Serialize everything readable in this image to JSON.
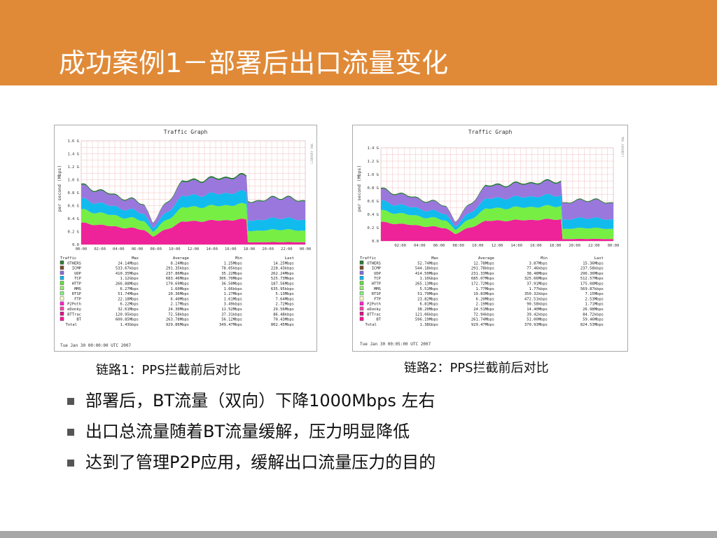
{
  "title": "成功案例1－部署后出口流量变化",
  "graphs": [
    {
      "graph_title": "Traffic Graph",
      "y_label": "per second (Mbps)",
      "side_text": "LIBRARY OWL",
      "y_ticks": [
        "1.6 G",
        "1.4 G",
        "1.2 G",
        "1.0 G",
        "0.8 G",
        "0.6 G",
        "0.4 G",
        "0.2 G",
        "0.0"
      ],
      "x_ticks": [
        "00:00",
        "02:00",
        "04:00",
        "06:00",
        "08:00",
        "10:00",
        "12:00",
        "14:00",
        "16:00",
        "18:00",
        "20:00",
        "22:00",
        "00:00"
      ],
      "headers": [
        "Traffic",
        "Max",
        "Average",
        "Min",
        "Last"
      ],
      "rows": [
        {
          "color": "#2e7d32",
          "name": "OTHERS",
          "max": "24.14Mbps",
          "avg": "8.24Mbps",
          "min": "1.25Mbps",
          "last": "14.25Mbps"
        },
        {
          "color": "#7b4a2a",
          "name": "ICMP",
          "max": "533.67kbps",
          "avg": "291.35kbps",
          "min": "78.05kbps",
          "last": "228.43kbps"
        },
        {
          "color": "#8a6fd6",
          "name": "UDP",
          "max": "410.35Mbps",
          "avg": "237.86Mbps",
          "min": "35.22Mbps",
          "last": "262.24Mbps"
        },
        {
          "color": "#12b6f0",
          "name": "TCP",
          "max": "1.12Gbps",
          "avg": "683.46Mbps",
          "min": "306.70Mbps",
          "last": "525.73Mbps"
        },
        {
          "color": "#66dd44",
          "name": "HTTP",
          "max": "266.88Mbps",
          "avg": "170.69Mbps",
          "min": "36.50Mbps",
          "last": "187.56Mbps"
        },
        {
          "color": "#a0e878",
          "name": "MMS",
          "max": "6.27Mbps",
          "avg": "1.60Mbps",
          "min": "1.66kbps",
          "last": "635.95kbps"
        },
        {
          "color": "#88ee88",
          "name": "RTSP",
          "max": "51.74Mbps",
          "avg": "20.36Mbps",
          "min": "1.27Mbps",
          "last": "5.13Mbps"
        },
        {
          "color": "#ffffcc",
          "name": "FTP",
          "max": "22.18Mbps",
          "avg": "6.40Mbps",
          "min": "1.61Mbps",
          "last": "7.64Mbps"
        },
        {
          "color": "#ff22cc",
          "name": "P2Poth",
          "max": "6.22Mbps",
          "avg": "2.17Mbps",
          "min": "3.49kbps",
          "last": "2.72Mbps"
        },
        {
          "color": "#ff44aa",
          "name": "eDonky",
          "max": "32.61Mbps",
          "avg": "24.30Mbps",
          "min": "11.52Mbps",
          "last": "29.56Mbps"
        },
        {
          "color": "#dd1188",
          "name": "BTTrac",
          "max": "120.95kbps",
          "avg": "72.58kbps",
          "min": "37.31kbps",
          "last": "86.48kbps"
        },
        {
          "color": "#ff1199",
          "name": "BT",
          "max": "600.85Mbps",
          "avg": "263.78Mbps",
          "min": "56.12Mbps",
          "last": "70.43Mbps"
        },
        {
          "color": "",
          "name": "Total",
          "max": "1.43Gbps",
          "avg": "929.86Mbps",
          "min": "349.47Mbps",
          "last": "802.45Mbps"
        }
      ],
      "timestamp": "Tue Jan 30 00:00:00 UTC 2007",
      "caption": "链路1：PPS拦截前后对比"
    },
    {
      "graph_title": "Traffic Graph",
      "y_label": "per second (Mbps)",
      "side_text": "LIBRARY OWL",
      "y_ticks": [
        "1.4 G",
        "1.2 G",
        "1.0 G",
        "0.8 G",
        "0.6 G",
        "0.4 G",
        "0.2 G",
        "0.0"
      ],
      "x_ticks": [
        "02:00",
        "04:00",
        "06:00",
        "08:00",
        "10:00",
        "12:00",
        "14:00",
        "16:00",
        "18:00",
        "20:00",
        "22:00",
        "00:00"
      ],
      "headers": [
        "Traffic",
        "Max",
        "Average",
        "Min",
        "Last"
      ],
      "rows": [
        {
          "color": "#2e7d32",
          "name": "OTHERS",
          "max": "52.74Mbps",
          "avg": "12.78Mbps",
          "min": "3.87Mbps",
          "last": "15.36Mbps"
        },
        {
          "color": "#7b4a2a",
          "name": "ICMP",
          "max": "544.18kbps",
          "avg": "291.78kbps",
          "min": "77.46kbps",
          "last": "237.58kbps"
        },
        {
          "color": "#8a6fd6",
          "name": "UDP",
          "max": "414.50Mbps",
          "avg": "231.33Mbps",
          "min": "38.48Mbps",
          "last": "296.36Mbps"
        },
        {
          "color": "#12b6f0",
          "name": "TCP",
          "max": "1.10Gbps",
          "avg": "685.07Mbps",
          "min": "325.66Mbps",
          "last": "512.57Mbps"
        },
        {
          "color": "#66dd44",
          "name": "HTTP",
          "max": "265.13Mbps",
          "avg": "172.72Mbps",
          "min": "37.91Mbps",
          "last": "175.08Mbps"
        },
        {
          "color": "#a0e878",
          "name": "MMS",
          "max": "5.51Mbps",
          "avg": "1.77Mbps",
          "min": "1.77kbps",
          "last": "569.87kbps"
        },
        {
          "color": "#88ee88",
          "name": "RTSP",
          "max": "51.79Mbps",
          "avg": "19.83Mbps",
          "min": "350.32kbps",
          "last": "7.15Mbps"
        },
        {
          "color": "#ffffcc",
          "name": "FTP",
          "max": "23.82Mbps",
          "avg": "6.20Mbps",
          "min": "472.51kbps",
          "last": "2.53Mbps"
        },
        {
          "color": "#ff22cc",
          "name": "P2Poth",
          "max": "6.81Mbps",
          "avg": "2.19Mbps",
          "min": "90.58kbps",
          "last": "1.71Mbps"
        },
        {
          "color": "#ff44aa",
          "name": "eDonky",
          "max": "38.20Mbps",
          "avg": "24.51Mbps",
          "min": "14.40Mbps",
          "last": "26.98Mbps"
        },
        {
          "color": "#dd1188",
          "name": "BTTrac",
          "max": "121.06kbps",
          "avg": "72.94kbps",
          "min": "39.42kbps",
          "last": "84.72kbps"
        },
        {
          "color": "#ff1199",
          "name": "BT",
          "max": "596.19Mbps",
          "avg": "261.74Mbps",
          "min": "51.00Mbps",
          "last": "59.46Mbps"
        },
        {
          "color": "",
          "name": "Total",
          "max": "1.38Gbps",
          "avg": "929.47Mbps",
          "min": "370.93Mbps",
          "last": "824.53Mbps"
        }
      ],
      "timestamp": "Tue Jan 30 00:05:00 UTC 2007",
      "caption": "链路2：PPS拦截前后对比"
    }
  ],
  "bullets": [
    "部署后，BT流量（双向）下降1000Mbps 左右",
    "出口总流量随着BT流量缓解，压力明显降低",
    "达到了管理P2P应用，缓解出口流量压力的目的"
  ],
  "colors": {
    "title_bar": "#e08a38",
    "bullet_square": "#555555",
    "bottom_bar": "#a7a7a7",
    "plot_grid": "#f0b0b0",
    "band_bt": "#ee2299",
    "band_http": "#77ee44",
    "band_tcp": "#11bbee",
    "band_udp": "#9977dd",
    "band_others": "#227733"
  }
}
